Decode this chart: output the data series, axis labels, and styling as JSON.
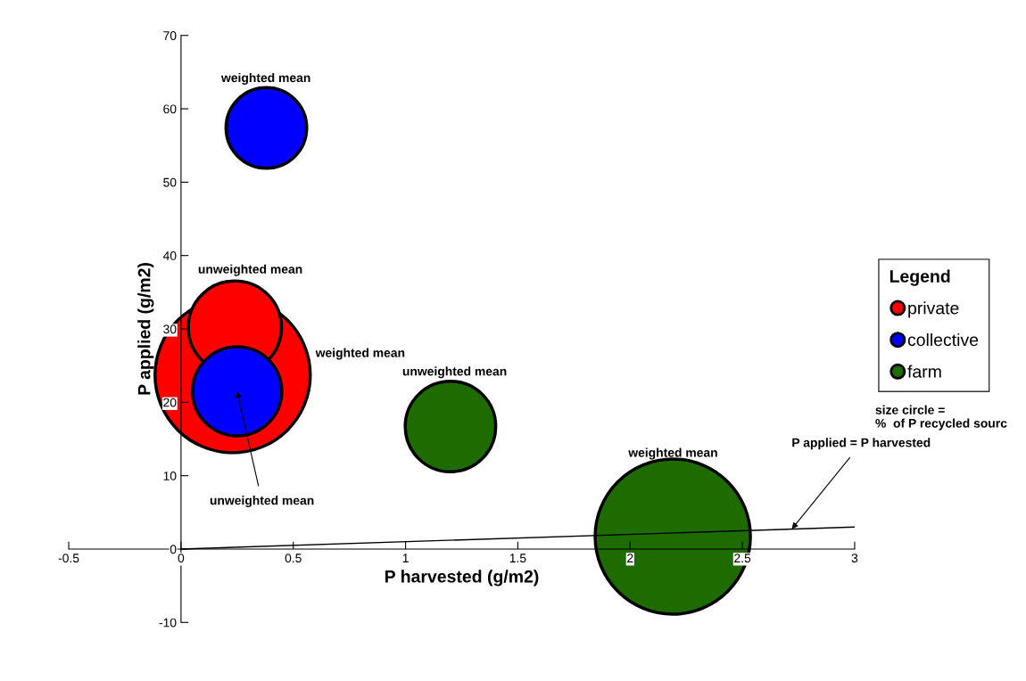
{
  "chart_data": {
    "type": "bubble",
    "xlabel": "P harvested (g/m2)",
    "ylabel": "P applied (g/m2)",
    "legend_title": "Legend",
    "series": [
      {
        "name": "private",
        "color": "#ff0000",
        "x": [
          0.23,
          0.24
        ],
        "values": [
          23.7,
          30.2
        ],
        "sizes": [
          1,
          0.36
        ]
      },
      {
        "name": "collective",
        "color": "#0000ff",
        "x": [
          0.38,
          0.25
        ],
        "values": [
          57.4,
          21.5
        ],
        "sizes": [
          0.27,
          0.33
        ]
      },
      {
        "name": "farm",
        "color": "#1e6b00",
        "x": [
          1.2,
          2.19
        ],
        "values": [
          16.7,
          1.7
        ],
        "sizes": [
          0.34,
          1
        ]
      },
      {
        "type": "line",
        "marker": "none",
        "color": "#000000",
        "x": [
          0,
          3
        ],
        "values": [
          0,
          3
        ]
      }
    ],
    "annotations": [
      "weighted mean",
      "unweighted mean",
      "weighted mean",
      "unweighted mean",
      "weighted mean",
      {
        "text": "unweighted mean",
        "x": 0.25,
        "y": 21.5
      },
      {
        "text": "P applied = P harvested",
        "x": 2.72,
        "y": 2.72
      },
      "size circle =\n%  of P recycled sourc"
    ],
    "xlim": [
      -0.5,
      3
    ],
    "ylim": [
      -10,
      70
    ],
    "xticks": [
      -0.5,
      0,
      0.5,
      1,
      1.5,
      2,
      2.5,
      3
    ],
    "yticks": [
      -10,
      0,
      10,
      20,
      30,
      40,
      50,
      60,
      70
    ],
    "grid": false,
    "legend": "right",
    "marker": "circle"
  }
}
